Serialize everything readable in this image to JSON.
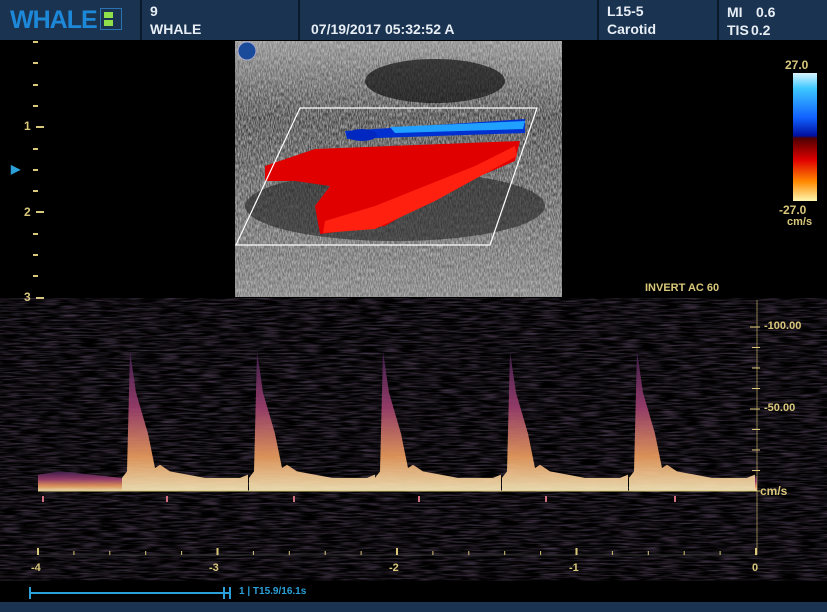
{
  "header": {
    "logo": "WHALE",
    "patient_id": "9",
    "patient_name": "WHALE",
    "datetime": "07/19/2017 05:32:52 A",
    "probe": "L15-5",
    "preset": "Carotid",
    "mi_label": "MI",
    "mi_value": "0.6",
    "tis_label": "TIS",
    "tis_value": "0.2"
  },
  "depth_scale": {
    "labels": [
      "1",
      "2",
      "3"
    ],
    "focus_marker": "▶"
  },
  "color_scale": {
    "max": "27.0",
    "min": "-27.0",
    "unit": "cm/s",
    "colors": {
      "positive": "#e00000",
      "negative": "#1060ff"
    }
  },
  "doppler": {
    "settings": "INVERT  AC 60",
    "velocity_labels": [
      "-100.00",
      "-50.00"
    ],
    "unit": "cm/s",
    "time_labels": [
      "-4",
      "-3",
      "-2",
      "-1",
      "0"
    ]
  },
  "cine": {
    "label": "1 | T15.9/16.1s"
  }
}
